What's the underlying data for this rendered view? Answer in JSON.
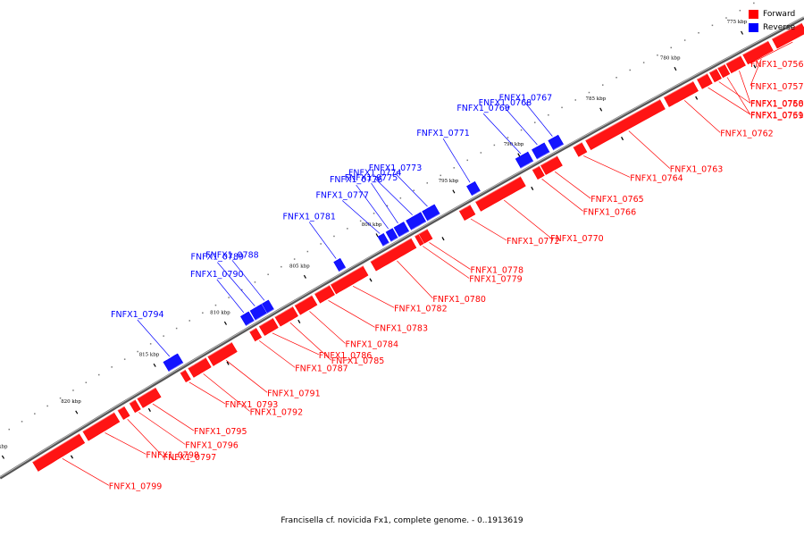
{
  "legend": [
    {
      "label": "Forward",
      "color": "#ff0000"
    },
    {
      "label": "Reverse",
      "color": "#0000ff"
    }
  ],
  "caption": "Francisella cf. novicida Fx1, complete genome. - 0..1913619",
  "colors": {
    "forward": "#ff0000",
    "reverse": "#0000ff",
    "backbone": "#808080"
  },
  "ticks": [
    "775 kbp",
    "780 kbp",
    "785 kbp",
    "790 kbp",
    "795 kbp",
    "800 kbp",
    "805 kbp",
    "810 kbp",
    "815 kbp",
    "820 kbp",
    "825 kbp"
  ],
  "genes_forward": [
    "FNFX1_0756",
    "FNFX1_0757",
    "FNFX1_0758",
    "FNFX1_0759",
    "FNFX1_0760",
    "FNFX1_0761",
    "FNFX1_0762",
    "FNFX1_0763",
    "FNFX1_0764",
    "FNFX1_0765",
    "FNFX1_0766",
    "FNFX1_0770",
    "FNFX1_0772",
    "FNFX1_0778",
    "FNFX1_0779",
    "FNFX1_0780",
    "FNFX1_0782",
    "FNFX1_0783",
    "FNFX1_0784",
    "FNFX1_0785",
    "FNFX1_0786",
    "FNFX1_0787",
    "FNFX1_0791",
    "FNFX1_0792",
    "FNFX1_0793",
    "FNFX1_0795",
    "FNFX1_0796",
    "FNFX1_0797",
    "FNFX1_0798",
    "FNFX1_0799"
  ],
  "genes_reverse": [
    "FNFX1_0767",
    "FNFX1_0768",
    "FNFX1_0769",
    "FNFX1_0771",
    "FNFX1_0773",
    "FNFX1_0774",
    "FNFX1_0775",
    "FNFX1_0776",
    "FNFX1_0777",
    "FNFX1_0781",
    "FNFX1_0788",
    "FNFX1_0789",
    "FNFX1_0790",
    "FNFX1_0794"
  ]
}
